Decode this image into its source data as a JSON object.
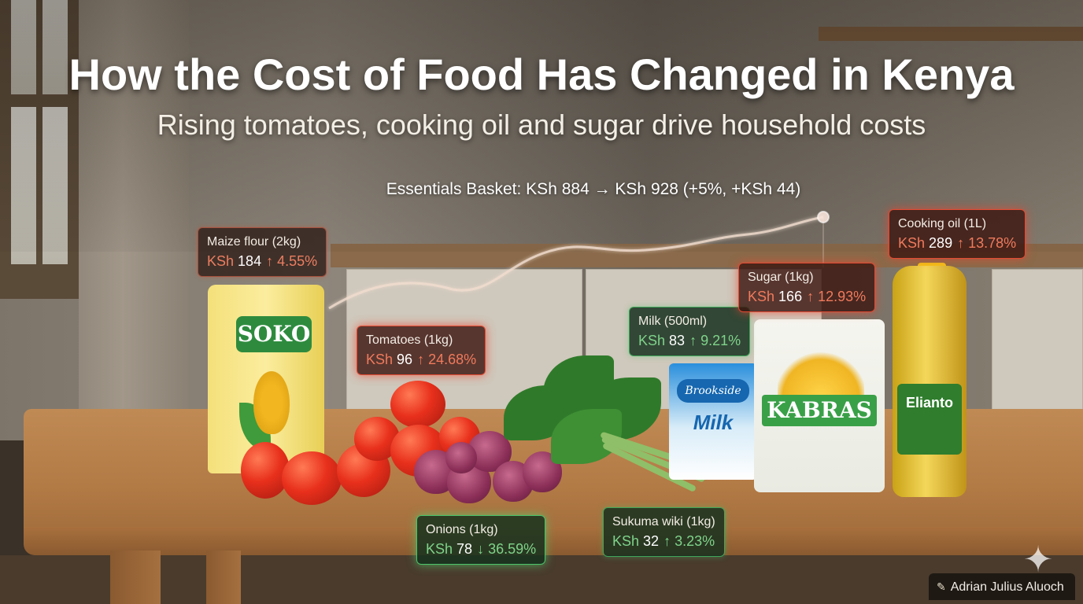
{
  "header": {
    "title": "How the Cost of Food Has Changed in Kenya",
    "subtitle": "Rising tomatoes, cooking oil and sugar drive household costs"
  },
  "basket": {
    "summary": "Essentials Basket: KSh 884  →  KSh 928 (+5%, +KSh 44)"
  },
  "items": {
    "maize_flour": {
      "name": "Maize flour (2kg)",
      "currency": "KSh",
      "price": "184",
      "change": "↑ 4.55%"
    },
    "tomatoes": {
      "name": "Tomatoes (1kg)",
      "currency": "KSh",
      "price": "96",
      "change": "↑ 24.68%"
    },
    "onions": {
      "name": "Onions (1kg)",
      "currency": "KSh",
      "price": "78",
      "change": "↓ 36.59%"
    },
    "sukuma_wiki": {
      "name": "Sukuma wiki (1kg)",
      "currency": "KSh",
      "price": "32",
      "change": "↑ 3.23%"
    },
    "milk": {
      "name": "Milk (500ml)",
      "currency": "KSh",
      "price": "83",
      "change": "↑ 9.21%"
    },
    "sugar": {
      "name": "Sugar (1kg)",
      "currency": "KSh",
      "price": "166",
      "change": "↑ 12.93%"
    },
    "cooking_oil": {
      "name": "Cooking oil (1L)",
      "currency": "KSh",
      "price": "289",
      "change": "↑ 13.78%"
    }
  },
  "packaging": {
    "flour_brand": "SOKO",
    "milk_brand": "Brookside",
    "milk_word": "Milk",
    "sugar_brand": "KABRAS",
    "oil_brand": "Elianto"
  },
  "footer": {
    "author": "Adrian Julius Aluoch"
  },
  "icons": {
    "author_icon": "pen-icon",
    "corner_icon": "sparkle-icon"
  },
  "colors": {
    "increase": "#f07a5c",
    "decrease": "#7fd38a",
    "trend_line": "#f1ddd0"
  }
}
